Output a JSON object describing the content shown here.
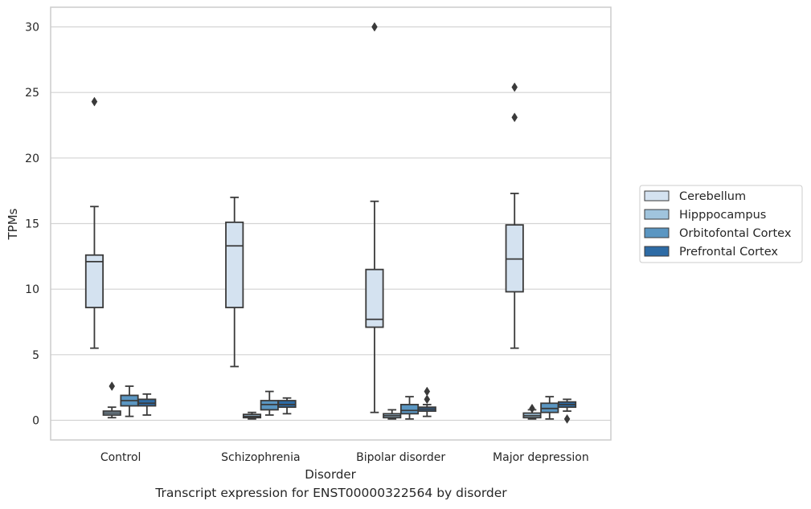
{
  "chart_data": {
    "type": "box",
    "caption": "Transcript expression for ENST00000322564 by disorder",
    "xlabel": "Disorder",
    "ylabel": "TPMs",
    "ylim": [
      -1.5,
      31.5
    ],
    "yticks": [
      0,
      5,
      10,
      15,
      20,
      25,
      30
    ],
    "grid": "horizontal",
    "legend_position": "right",
    "categories": [
      "Control",
      "Schizophrenia",
      "Bipolar disorder",
      "Major depression"
    ],
    "series": [
      {
        "name": "Cerebellum",
        "color": "#d4e2f0",
        "boxes": [
          {
            "whislo": 5.5,
            "q1": 8.6,
            "med": 12.1,
            "q3": 12.6,
            "whishi": 16.3,
            "fliers": [
              24.3
            ]
          },
          {
            "whislo": 4.1,
            "q1": 8.6,
            "med": 13.3,
            "q3": 15.1,
            "whishi": 17.0,
            "fliers": []
          },
          {
            "whislo": 0.6,
            "q1": 7.1,
            "med": 7.7,
            "q3": 11.5,
            "whishi": 16.7,
            "fliers": [
              30.0
            ]
          },
          {
            "whislo": 5.5,
            "q1": 9.8,
            "med": 12.3,
            "q3": 14.9,
            "whishi": 17.3,
            "fliers": [
              25.4,
              23.1
            ]
          }
        ]
      },
      {
        "name": "Hipppocampus",
        "color": "#a0c4dd",
        "boxes": [
          {
            "whislo": 0.2,
            "q1": 0.4,
            "med": 0.55,
            "q3": 0.7,
            "whishi": 1.0,
            "fliers": [
              2.6
            ]
          },
          {
            "whislo": 0.1,
            "q1": 0.2,
            "med": 0.3,
            "q3": 0.45,
            "whishi": 0.6,
            "fliers": []
          },
          {
            "whislo": 0.1,
            "q1": 0.2,
            "med": 0.35,
            "q3": 0.5,
            "whishi": 0.8,
            "fliers": []
          },
          {
            "whislo": 0.1,
            "q1": 0.2,
            "med": 0.35,
            "q3": 0.55,
            "whishi": 0.8,
            "fliers": [
              0.9
            ]
          }
        ]
      },
      {
        "name": "Orbitofontal Cortex",
        "color": "#5a96c2",
        "boxes": [
          {
            "whislo": 0.3,
            "q1": 1.1,
            "med": 1.5,
            "q3": 1.9,
            "whishi": 2.6,
            "fliers": []
          },
          {
            "whislo": 0.4,
            "q1": 0.8,
            "med": 1.2,
            "q3": 1.5,
            "whishi": 2.2,
            "fliers": []
          },
          {
            "whislo": 0.1,
            "q1": 0.5,
            "med": 0.75,
            "q3": 1.2,
            "whishi": 1.8,
            "fliers": []
          },
          {
            "whislo": 0.1,
            "q1": 0.6,
            "med": 0.9,
            "q3": 1.3,
            "whishi": 1.8,
            "fliers": []
          }
        ]
      },
      {
        "name": "Prefrontal Cortex",
        "color": "#2d6ba5",
        "boxes": [
          {
            "whislo": 0.4,
            "q1": 1.1,
            "med": 1.3,
            "q3": 1.6,
            "whishi": 2.0,
            "fliers": []
          },
          {
            "whislo": 0.5,
            "q1": 1.0,
            "med": 1.2,
            "q3": 1.5,
            "whishi": 1.7,
            "fliers": []
          },
          {
            "whislo": 0.3,
            "q1": 0.7,
            "med": 0.85,
            "q3": 1.0,
            "whishi": 1.2,
            "fliers": [
              2.2,
              1.6
            ]
          },
          {
            "whislo": 0.7,
            "q1": 1.0,
            "med": 1.2,
            "q3": 1.4,
            "whishi": 1.6,
            "fliers": [
              0.1
            ]
          }
        ]
      }
    ]
  }
}
